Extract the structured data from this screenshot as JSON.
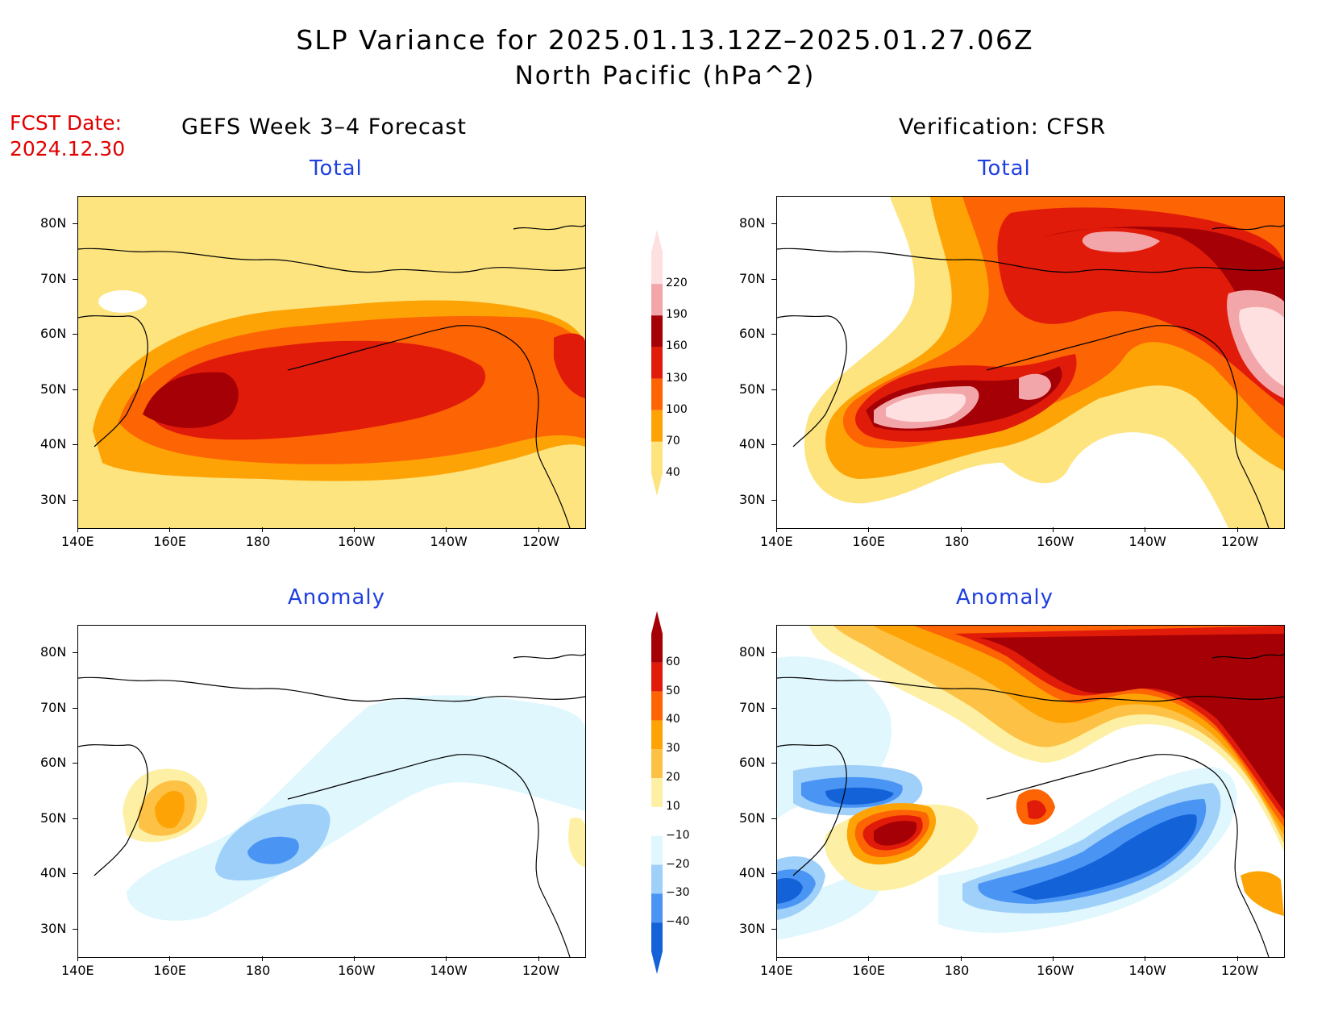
{
  "header": {
    "title": "SLP Variance for 2025.01.13.12Z–2025.01.27.06Z",
    "subtitle": "North Pacific (hPa^2)",
    "fcst_line1": "FCST Date:",
    "fcst_line2": "2024.12.30"
  },
  "columns": {
    "left": "GEFS Week 3–4 Forecast",
    "right": "Verification: CFSR"
  },
  "panels": {
    "total_title": "Total",
    "anomaly_title": "Anomaly"
  },
  "axes": {
    "lat_labels": [
      "80N",
      "70N",
      "60N",
      "50N",
      "40N",
      "30N"
    ],
    "lon_labels": [
      "140E",
      "160E",
      "180",
      "160W",
      "140W",
      "120W"
    ]
  },
  "colorbars": {
    "total": {
      "levels": [
        "40",
        "70",
        "100",
        "130",
        "160",
        "190",
        "220"
      ],
      "colors": [
        "#fde47f",
        "#fea305",
        "#fd6404",
        "#e11b0a",
        "#a50005",
        "#f3a6a9",
        "#fde0df"
      ]
    },
    "anomaly": {
      "levels": [
        "60",
        "50",
        "40",
        "30",
        "20",
        "10",
        "−10",
        "−20",
        "−30",
        "−40"
      ],
      "colors": [
        "#a50005",
        "#e11b0a",
        "#fd6404",
        "#fea305",
        "#fdc245",
        "#fdf0a5",
        "#ffffff",
        "#dff7fd",
        "#9fd0fa",
        "#4a95f4",
        "#1462d8"
      ]
    }
  },
  "map_data": {
    "lon_range": [
      "140E",
      "110W"
    ],
    "lat_range": [
      "25N",
      "85N"
    ]
  }
}
